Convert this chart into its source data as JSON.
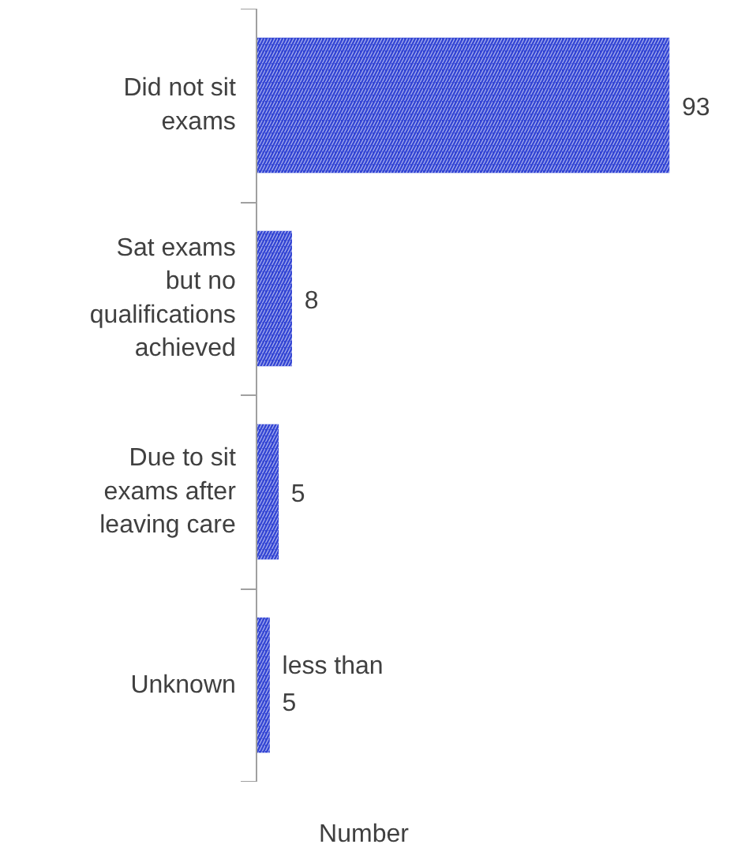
{
  "chart_data": {
    "type": "bar",
    "orientation": "horizontal",
    "xlabel": "Number",
    "categories": [
      "Did not sit exams",
      "Sat exams but no qualifications achieved",
      "Due to sit exams after leaving care",
      "Unknown"
    ],
    "values": [
      93,
      8,
      5,
      3
    ],
    "value_labels": [
      "93",
      "8",
      "5",
      "less than 5"
    ],
    "color": "#3345d4",
    "grid": false
  }
}
